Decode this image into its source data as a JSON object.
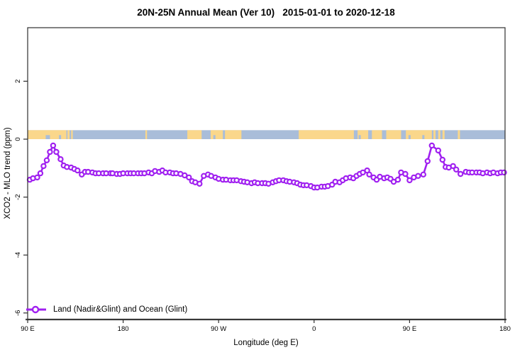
{
  "colors": {
    "series_purple": "#A020F0",
    "marker_fill": "#FFFFFF",
    "strip_ocean_blue": "#A9BDD9",
    "strip_land_orange": "#FAD78B",
    "axis_box": "#2E2E2E",
    "axis_baseline": "#4A4A4A",
    "text": "#000000"
  },
  "chart_data": {
    "type": "line",
    "title": "20N-25N Annual Mean (Ver 10)   2015-01-01 to 2020-12-18",
    "x_axis": {
      "label": "Longitude (deg E)",
      "range_deg": [
        90,
        540
      ],
      "ticks_deg": [
        90,
        180,
        270,
        360,
        450,
        540
      ],
      "tick_labels": [
        "90 E",
        "180",
        "90 W",
        "0",
        "90 E",
        "180"
      ],
      "note": "longitude increases eastward from 90E, wrapping across the dateline back to 180"
    },
    "y_axis": {
      "label": "XCO2 - MLO trend (ppm)",
      "range": [
        -6.2,
        3.85
      ],
      "ticks": [
        2,
        0,
        -2,
        -4,
        -6
      ],
      "tick_labels": [
        "2",
        "0",
        "-2",
        "-4",
        "-6"
      ]
    },
    "grid": false,
    "legend_position": "bottom-left-inside",
    "map_strip": {
      "description": "land/ocean strip map of the 20N-25N band drawn along y=0 to y=+0.31 ppm",
      "y_range_ppm": [
        0,
        0.31
      ],
      "land_segments_deg": [
        [
          90,
          126.5
        ],
        [
          127.5,
          129.5
        ],
        [
          131,
          132.5
        ],
        [
          201,
          202.5
        ],
        [
          240.5,
          254
        ],
        [
          262.5,
          274
        ],
        [
          276,
          291.5
        ],
        [
          345.5,
          397.5
        ],
        [
          401,
          411
        ],
        [
          414.5,
          424
        ],
        [
          428,
          442
        ],
        [
          446.5,
          471
        ],
        [
          472.5,
          474.5
        ],
        [
          477,
          479
        ],
        [
          481,
          483
        ],
        [
          495.5,
          497.5
        ]
      ],
      "coast_notch_segments_deg": [
        [
          107,
          111
        ],
        [
          119.5,
          121.5
        ],
        [
          265,
          267
        ],
        [
          402,
          404
        ],
        [
          449,
          451
        ],
        [
          462,
          464
        ]
      ]
    },
    "series": [
      {
        "name": "Land (Nadir&Glint) and Ocean (Glint)",
        "marker": "open-circle",
        "points": [
          [
            92,
            -1.4
          ],
          [
            95,
            -1.35
          ],
          [
            99,
            -1.32
          ],
          [
            102,
            -1.18
          ],
          [
            105,
            -0.93
          ],
          [
            108,
            -0.73
          ],
          [
            111,
            -0.44
          ],
          [
            114,
            -0.22
          ],
          [
            117,
            -0.44
          ],
          [
            121,
            -0.69
          ],
          [
            124,
            -0.91
          ],
          [
            127,
            -0.96
          ],
          [
            131,
            -0.98
          ],
          [
            134,
            -1.03
          ],
          [
            137,
            -1.08
          ],
          [
            141,
            -1.22
          ],
          [
            144,
            -1.13
          ],
          [
            147,
            -1.13
          ],
          [
            151,
            -1.15
          ],
          [
            154,
            -1.18
          ],
          [
            157,
            -1.18
          ],
          [
            161,
            -1.18
          ],
          [
            164,
            -1.18
          ],
          [
            168,
            -1.18
          ],
          [
            170,
            -1.18
          ],
          [
            174,
            -1.2
          ],
          [
            177,
            -1.2
          ],
          [
            180,
            -1.18
          ],
          [
            184,
            -1.18
          ],
          [
            187,
            -1.18
          ],
          [
            190,
            -1.18
          ],
          [
            194,
            -1.18
          ],
          [
            197,
            -1.18
          ],
          [
            200,
            -1.18
          ],
          [
            204,
            -1.15
          ],
          [
            207,
            -1.18
          ],
          [
            210,
            -1.1
          ],
          [
            214,
            -1.13
          ],
          [
            217,
            -1.08
          ],
          [
            220,
            -1.15
          ],
          [
            224,
            -1.15
          ],
          [
            227,
            -1.18
          ],
          [
            230,
            -1.18
          ],
          [
            234,
            -1.2
          ],
          [
            238,
            -1.25
          ],
          [
            242,
            -1.32
          ],
          [
            245,
            -1.45
          ],
          [
            248,
            -1.49
          ],
          [
            252,
            -1.54
          ],
          [
            256,
            -1.27
          ],
          [
            260,
            -1.22
          ],
          [
            263,
            -1.27
          ],
          [
            267,
            -1.32
          ],
          [
            270,
            -1.37
          ],
          [
            274,
            -1.4
          ],
          [
            277,
            -1.4
          ],
          [
            281,
            -1.42
          ],
          [
            284,
            -1.42
          ],
          [
            287,
            -1.42
          ],
          [
            291,
            -1.45
          ],
          [
            294,
            -1.47
          ],
          [
            297,
            -1.49
          ],
          [
            301,
            -1.52
          ],
          [
            304,
            -1.49
          ],
          [
            307,
            -1.52
          ],
          [
            311,
            -1.52
          ],
          [
            314,
            -1.52
          ],
          [
            317,
            -1.54
          ],
          [
            321,
            -1.49
          ],
          [
            324,
            -1.45
          ],
          [
            327,
            -1.42
          ],
          [
            331,
            -1.42
          ],
          [
            334,
            -1.45
          ],
          [
            337,
            -1.47
          ],
          [
            341,
            -1.49
          ],
          [
            344,
            -1.52
          ],
          [
            347,
            -1.57
          ],
          [
            350,
            -1.59
          ],
          [
            353,
            -1.59
          ],
          [
            357,
            -1.62
          ],
          [
            360,
            -1.67
          ],
          [
            363,
            -1.67
          ],
          [
            367,
            -1.64
          ],
          [
            370,
            -1.64
          ],
          [
            373,
            -1.62
          ],
          [
            377,
            -1.57
          ],
          [
            380,
            -1.47
          ],
          [
            384,
            -1.49
          ],
          [
            387,
            -1.42
          ],
          [
            390,
            -1.35
          ],
          [
            394,
            -1.32
          ],
          [
            397,
            -1.35
          ],
          [
            400,
            -1.27
          ],
          [
            403,
            -1.2
          ],
          [
            406,
            -1.15
          ],
          [
            410,
            -1.08
          ],
          [
            412,
            -1.22
          ],
          [
            416,
            -1.32
          ],
          [
            419,
            -1.4
          ],
          [
            422,
            -1.3
          ],
          [
            426,
            -1.35
          ],
          [
            429,
            -1.32
          ],
          [
            432,
            -1.37
          ],
          [
            435,
            -1.47
          ],
          [
            439,
            -1.4
          ],
          [
            442,
            -1.15
          ],
          [
            446,
            -1.2
          ],
          [
            450,
            -1.42
          ],
          [
            454,
            -1.32
          ],
          [
            458,
            -1.27
          ],
          [
            463,
            -1.22
          ],
          [
            467,
            -0.76
          ],
          [
            471,
            -0.22
          ],
          [
            477,
            -0.39
          ],
          [
            481,
            -0.71
          ],
          [
            484,
            -0.96
          ],
          [
            487,
            -0.98
          ],
          [
            491,
            -0.93
          ],
          [
            494,
            -1.05
          ],
          [
            498,
            -1.2
          ],
          [
            503,
            -1.13
          ],
          [
            506,
            -1.15
          ],
          [
            509,
            -1.15
          ],
          [
            513,
            -1.15
          ],
          [
            516,
            -1.15
          ],
          [
            519,
            -1.18
          ],
          [
            523,
            -1.15
          ],
          [
            526,
            -1.18
          ],
          [
            529,
            -1.15
          ],
          [
            533,
            -1.18
          ],
          [
            536,
            -1.15
          ],
          [
            539,
            -1.15
          ]
        ]
      }
    ]
  }
}
